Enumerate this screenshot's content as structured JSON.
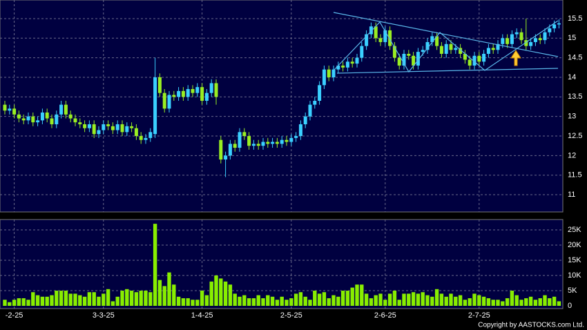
{
  "chart_data": {
    "type": "candlestick",
    "copyright": "Copyright by AASTOCKS.com Ltd.",
    "categories": [
      null,
      null,
      "-2-25",
      null,
      null,
      null,
      null,
      null,
      null,
      null,
      null,
      null,
      null,
      null,
      null,
      null,
      null,
      null,
      null,
      null,
      null,
      "3-3-25",
      null,
      null,
      null,
      null,
      null,
      null,
      null,
      null,
      null,
      null,
      null,
      null,
      null,
      null,
      null,
      null,
      null,
      null,
      null,
      null,
      "1-4-25",
      null,
      null,
      null,
      null,
      null,
      null,
      null,
      null,
      null,
      null,
      null,
      null,
      null,
      null,
      null,
      null,
      null,
      null,
      "2-5-25",
      null,
      null,
      null,
      null,
      null,
      null,
      null,
      null,
      null,
      null,
      null,
      null,
      null,
      null,
      null,
      null,
      null,
      null,
      null,
      "2-6-25",
      null,
      null,
      null,
      null,
      null,
      null,
      null,
      null,
      null,
      null,
      null,
      null,
      null,
      null,
      null,
      null,
      null,
      null,
      null,
      "2-7-25",
      null,
      null,
      null,
      null,
      null,
      null,
      null,
      null,
      null,
      null,
      null,
      null,
      null,
      null,
      null,
      null,
      null
    ],
    "open": [
      13.3,
      13.15,
      13.2,
      13.05,
      12.95,
      12.9,
      13.0,
      12.85,
      12.9,
      13.1,
      12.95,
      12.8,
      13.05,
      13.3,
      13.05,
      12.95,
      12.85,
      12.8,
      12.7,
      12.8,
      12.55,
      12.65,
      12.8,
      12.75,
      12.65,
      12.8,
      12.6,
      12.75,
      12.7,
      12.5,
      12.4,
      12.45,
      12.55,
      14.0,
      13.6,
      13.2,
      13.55,
      13.5,
      13.65,
      13.5,
      13.7,
      13.6,
      13.75,
      13.4,
      13.6,
      13.85,
      12.4,
      11.9,
      12.0,
      12.3,
      12.2,
      12.6,
      12.5,
      12.25,
      12.3,
      12.25,
      12.35,
      12.3,
      12.35,
      12.3,
      12.4,
      12.35,
      12.45,
      12.5,
      12.8,
      13.0,
      13.3,
      13.4,
      13.8,
      14.2,
      14.0,
      14.2,
      14.3,
      14.25,
      14.4,
      14.35,
      14.5,
      14.8,
      15.1,
      15.3,
      15.0,
      14.9,
      15.2,
      14.8,
      14.5,
      14.3,
      14.6,
      14.55,
      14.3,
      14.65,
      14.7,
      14.9,
      15.05,
      14.8,
      14.6,
      14.85,
      14.7,
      14.75,
      14.6,
      14.45,
      14.3,
      14.55,
      14.4,
      14.6,
      14.75,
      14.7,
      14.85,
      15.0,
      14.85,
      15.1,
      15.15,
      14.95,
      14.8,
      14.9,
      15.0,
      14.95,
      15.15,
      15.25,
      15.35
    ],
    "high": [
      13.4,
      13.3,
      13.3,
      13.15,
      13.05,
      13.1,
      13.1,
      13.0,
      13.2,
      13.2,
      13.05,
      13.15,
      13.4,
      13.4,
      13.15,
      13.05,
      12.95,
      12.9,
      12.9,
      12.9,
      12.75,
      12.9,
      12.9,
      12.85,
      12.9,
      12.9,
      12.85,
      12.85,
      12.8,
      12.6,
      12.55,
      12.7,
      14.5,
      14.1,
      13.7,
      13.65,
      13.65,
      13.75,
      13.75,
      13.8,
      13.8,
      13.85,
      13.85,
      13.7,
      13.95,
      13.95,
      12.5,
      12.1,
      12.4,
      12.4,
      12.7,
      12.7,
      12.6,
      12.4,
      12.4,
      12.45,
      12.45,
      12.45,
      12.45,
      12.5,
      12.5,
      12.55,
      12.6,
      12.9,
      13.1,
      13.4,
      13.5,
      13.9,
      14.3,
      14.3,
      14.3,
      14.4,
      14.4,
      14.5,
      14.5,
      14.6,
      14.9,
      15.2,
      15.4,
      15.4,
      15.1,
      15.3,
      15.3,
      14.9,
      14.6,
      14.7,
      14.7,
      14.65,
      14.75,
      14.8,
      15.0,
      15.15,
      15.15,
      14.9,
      14.95,
      14.95,
      14.85,
      14.85,
      14.7,
      14.55,
      14.65,
      14.65,
      14.7,
      14.85,
      14.85,
      14.95,
      15.1,
      15.1,
      15.2,
      15.25,
      15.25,
      15.5,
      15.0,
      15.1,
      15.1,
      15.25,
      15.35,
      15.45,
      15.48
    ],
    "low": [
      13.05,
      13.05,
      12.95,
      12.85,
      12.8,
      12.8,
      12.75,
      12.75,
      12.8,
      12.85,
      12.7,
      12.7,
      12.95,
      12.95,
      12.85,
      12.75,
      12.7,
      12.6,
      12.6,
      12.45,
      12.45,
      12.55,
      12.65,
      12.55,
      12.55,
      12.5,
      12.5,
      12.6,
      12.4,
      12.3,
      12.3,
      12.35,
      12.45,
      13.5,
      13.1,
      13.1,
      13.4,
      13.4,
      13.4,
      13.4,
      13.5,
      13.5,
      13.3,
      13.3,
      13.5,
      13.3,
      11.8,
      11.45,
      11.9,
      12.1,
      12.1,
      12.4,
      12.15,
      12.15,
      12.15,
      12.15,
      12.2,
      12.2,
      12.2,
      12.2,
      12.25,
      12.25,
      12.35,
      12.4,
      12.7,
      12.9,
      13.2,
      13.3,
      13.7,
      13.9,
      13.9,
      14.1,
      14.15,
      14.15,
      14.25,
      14.25,
      14.4,
      14.7,
      15.0,
      14.9,
      14.8,
      14.8,
      14.7,
      14.4,
      14.2,
      14.2,
      14.45,
      14.2,
      14.2,
      14.55,
      14.6,
      14.8,
      14.7,
      14.5,
      14.5,
      14.6,
      14.6,
      14.5,
      14.35,
      14.2,
      14.2,
      14.3,
      14.3,
      14.5,
      14.6,
      14.6,
      14.75,
      14.75,
      14.75,
      15.0,
      14.85,
      14.7,
      14.7,
      14.8,
      14.85,
      14.85,
      15.05,
      15.15,
      15.25
    ],
    "close": [
      13.15,
      13.2,
      13.05,
      12.95,
      12.9,
      13.0,
      12.85,
      12.9,
      13.1,
      12.95,
      12.8,
      13.05,
      13.3,
      13.05,
      12.95,
      12.85,
      12.8,
      12.7,
      12.8,
      12.55,
      12.65,
      12.8,
      12.75,
      12.65,
      12.8,
      12.6,
      12.75,
      12.7,
      12.5,
      12.4,
      12.45,
      12.6,
      14.0,
      13.6,
      13.2,
      13.55,
      13.5,
      13.65,
      13.5,
      13.7,
      13.6,
      13.75,
      13.4,
      13.6,
      13.85,
      13.5,
      11.9,
      12.0,
      12.3,
      12.2,
      12.6,
      12.5,
      12.25,
      12.3,
      12.25,
      12.35,
      12.3,
      12.35,
      12.3,
      12.4,
      12.35,
      12.45,
      12.5,
      12.8,
      13.0,
      13.3,
      13.4,
      13.8,
      14.2,
      14.0,
      14.2,
      14.3,
      14.25,
      14.4,
      14.35,
      14.5,
      14.8,
      15.1,
      15.3,
      15.0,
      14.9,
      15.2,
      14.8,
      14.5,
      14.3,
      14.6,
      14.55,
      14.3,
      14.65,
      14.7,
      14.9,
      15.05,
      14.8,
      14.6,
      14.85,
      14.7,
      14.75,
      14.6,
      14.45,
      14.3,
      14.55,
      14.4,
      14.6,
      14.75,
      14.7,
      14.85,
      15.0,
      14.85,
      15.1,
      15.15,
      14.95,
      14.8,
      14.9,
      15.0,
      14.95,
      15.15,
      15.25,
      15.35,
      15.38
    ],
    "volume": [
      2000,
      1200,
      2000,
      2500,
      2500,
      2000,
      4500,
      3500,
      3000,
      3000,
      3500,
      5000,
      5000,
      5000,
      4000,
      4000,
      3500,
      3000,
      4500,
      4500,
      3000,
      4000,
      5500,
      1500,
      3000,
      5000,
      5500,
      5000,
      4500,
      5000,
      5000,
      4500,
      27000,
      8500,
      6500,
      11000,
      7000,
      3000,
      2500,
      2500,
      2000,
      2000,
      5000,
      3500,
      8000,
      10000,
      9000,
      8000,
      7000,
      4000,
      3000,
      3500,
      2500,
      2500,
      3500,
      2500,
      3500,
      3000,
      2000,
      3000,
      2000,
      2500,
      4000,
      4500,
      3000,
      2000,
      5000,
      4000,
      4500,
      2500,
      3500,
      3000,
      5000,
      5000,
      6000,
      7000,
      7000,
      4000,
      2500,
      3500,
      4000,
      2000,
      4000,
      5000,
      2000,
      4000,
      4000,
      4500,
      4000,
      4500,
      3500,
      3000,
      5500,
      4000,
      3000,
      4000,
      3000,
      3500,
      2000,
      2500,
      4000,
      3500,
      3000,
      2500,
      2000,
      2000,
      1500,
      2500,
      5000,
      3500,
      2000,
      2500,
      3000,
      2000,
      2500,
      3500,
      2500,
      3000,
      1500
    ],
    "up_color": "#3ad0ff",
    "down_color": "#99ee22",
    "volume_color": "#88ee00",
    "ylim": [
      10.56,
      15.94
    ],
    "yticks": [
      11,
      11.5,
      12,
      12.5,
      13,
      13.5,
      14,
      14.5,
      15,
      15.5
    ],
    "y2lim": [
      0,
      28400
    ],
    "y2ticks": [
      0,
      {
        "value": 5000,
        "label": "5K"
      },
      {
        "value": 10000,
        "label": "10K"
      },
      {
        "value": 15000,
        "label": "15K"
      },
      {
        "value": 20000,
        "label": "20K"
      },
      {
        "value": 25000,
        "label": "25K"
      }
    ],
    "grid": true
  }
}
